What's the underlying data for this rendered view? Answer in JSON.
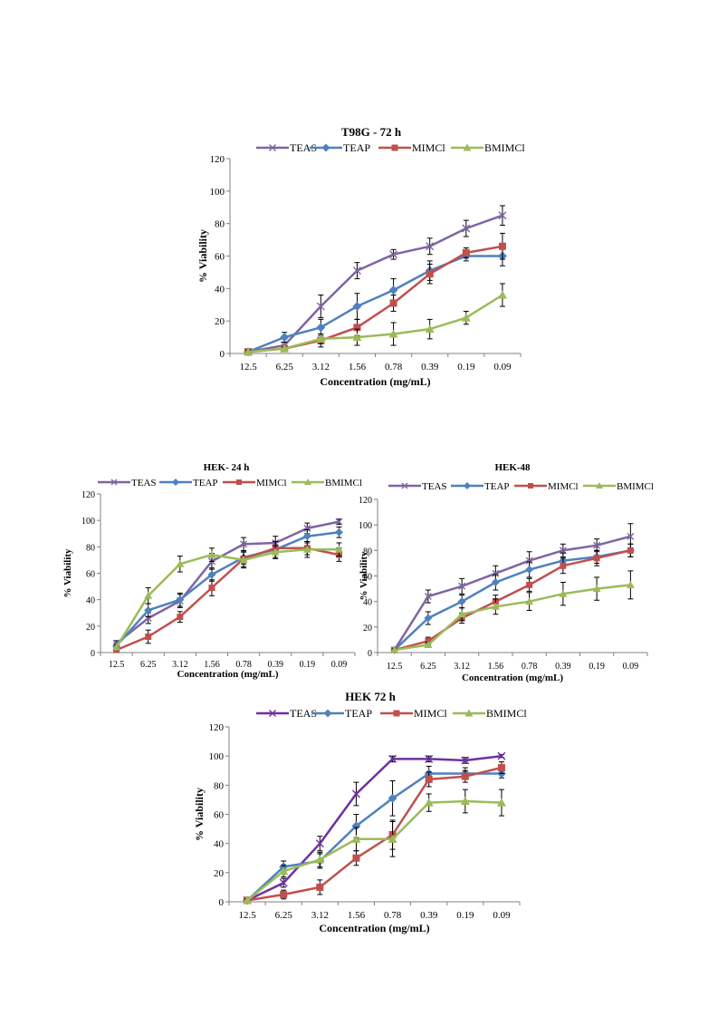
{
  "chart_data": [
    {
      "id": "t98g72",
      "type": "line",
      "title": "T98G - 72 h",
      "xlabel": "Concentration (mg/mL)",
      "ylabel": "% Viability",
      "categories": [
        "12.5",
        "6.25",
        "3.12",
        "1.56",
        "0.78",
        "0.39",
        "0.19",
        "0.09"
      ],
      "ylim": [
        0,
        120
      ],
      "yticks": [
        0,
        20,
        40,
        60,
        80,
        100,
        120
      ],
      "grid": false,
      "legend_position": "top",
      "series": [
        {
          "name": "TEAS",
          "color": "#8064A2",
          "marker": "x",
          "values": [
            1,
            5,
            29,
            51,
            61,
            66,
            77,
            85
          ],
          "errors": [
            1,
            2,
            7,
            5,
            3,
            5,
            5,
            6
          ]
        },
        {
          "name": "TEAP",
          "color": "#4F81BD",
          "marker": "diamond",
          "values": [
            1,
            10,
            16,
            29,
            39,
            51,
            60,
            60
          ],
          "errors": [
            1,
            3,
            5,
            8,
            7,
            6,
            3,
            6
          ]
        },
        {
          "name": "MIMCl",
          "color": "#C0504D",
          "marker": "square",
          "values": [
            1,
            3,
            8,
            16,
            31,
            49,
            62,
            66
          ],
          "errors": [
            1,
            1,
            4,
            5,
            5,
            6,
            3,
            8
          ]
        },
        {
          "name": "BMIMCl",
          "color": "#9BBB59",
          "marker": "triangle",
          "values": [
            1,
            3,
            9,
            10,
            12,
            15,
            22,
            36
          ],
          "errors": [
            1,
            1,
            3,
            5,
            7,
            6,
            4,
            7
          ]
        }
      ]
    },
    {
      "id": "hek24",
      "type": "line",
      "title": "HEK- 24 h",
      "xlabel": "Concentration (mg/mL)",
      "ylabel": "% Viability",
      "categories": [
        "12.5",
        "6.25",
        "3.12",
        "1.56",
        "0.78",
        "0.39",
        "0.19",
        "0.09"
      ],
      "ylim": [
        0,
        120
      ],
      "yticks": [
        0,
        20,
        40,
        60,
        80,
        100,
        120
      ],
      "grid": false,
      "legend_position": "top",
      "series": [
        {
          "name": "TEAS",
          "color": "#8064A2",
          "marker": "x",
          "values": [
            7,
            26,
            39,
            69,
            82,
            83,
            94,
            99
          ],
          "errors": [
            2,
            4,
            5,
            6,
            5,
            5,
            4,
            2
          ]
        },
        {
          "name": "TEAP",
          "color": "#4F81BD",
          "marker": "diamond",
          "values": [
            5,
            32,
            40,
            59,
            72,
            78,
            88,
            91
          ],
          "errors": [
            2,
            5,
            5,
            5,
            5,
            6,
            5,
            4
          ]
        },
        {
          "name": "MIMCl",
          "color": "#C0504D",
          "marker": "square",
          "values": [
            2,
            12,
            27,
            49,
            71,
            79,
            79,
            74
          ],
          "errors": [
            1,
            5,
            4,
            6,
            6,
            5,
            5,
            5
          ]
        },
        {
          "name": "BMIMCl",
          "color": "#9BBB59",
          "marker": "triangle",
          "values": [
            4,
            43,
            67,
            74,
            70,
            76,
            78,
            78
          ],
          "errors": [
            2,
            6,
            6,
            5,
            6,
            5,
            6,
            5
          ]
        }
      ]
    },
    {
      "id": "hek48",
      "type": "line",
      "title": "HEK-48",
      "xlabel": "Concentration (mg/mL)",
      "ylabel": "% Viability",
      "categories": [
        "12.5",
        "6.25",
        "3.12",
        "1.56",
        "0.78",
        "0.39",
        "0.19",
        "0.09"
      ],
      "ylim": [
        0,
        120
      ],
      "yticks": [
        0,
        20,
        40,
        60,
        80,
        100,
        120
      ],
      "grid": false,
      "legend_position": "top",
      "series": [
        {
          "name": "TEAS",
          "color": "#8064A2",
          "marker": "x",
          "values": [
            2,
            44,
            52,
            62,
            72,
            80,
            84,
            91
          ],
          "errors": [
            1,
            5,
            6,
            6,
            7,
            5,
            5,
            10
          ]
        },
        {
          "name": "TEAP",
          "color": "#4F81BD",
          "marker": "diamond",
          "values": [
            2,
            27,
            40,
            55,
            65,
            72,
            75,
            80
          ],
          "errors": [
            1,
            5,
            5,
            6,
            6,
            6,
            5,
            5
          ]
        },
        {
          "name": "MIMCl",
          "color": "#C0504D",
          "marker": "square",
          "values": [
            2,
            9,
            27,
            40,
            53,
            68,
            74,
            80
          ],
          "errors": [
            1,
            3,
            4,
            5,
            5,
            6,
            6,
            5
          ]
        },
        {
          "name": "BMIMCl",
          "color": "#9BBB59",
          "marker": "triangle",
          "values": [
            2,
            6,
            30,
            36,
            40,
            46,
            50,
            53
          ],
          "errors": [
            1,
            2,
            5,
            6,
            7,
            9,
            9,
            11
          ]
        }
      ]
    },
    {
      "id": "hek72",
      "type": "line",
      "title": "HEK 72 h",
      "xlabel": "Concentration (mg/mL)",
      "ylabel": "% Viability",
      "categories": [
        "12.5",
        "6.25",
        "3.12",
        "1.56",
        "0.78",
        "0.39",
        "0.19",
        "0.09"
      ],
      "ylim": [
        0,
        120
      ],
      "yticks": [
        0,
        20,
        40,
        60,
        80,
        100,
        120
      ],
      "grid": false,
      "legend_position": "top",
      "series": [
        {
          "name": "TEAS",
          "color": "#7030A0",
          "marker": "x",
          "values": [
            1,
            13,
            40,
            74,
            98,
            98,
            97,
            100
          ],
          "errors": [
            1,
            3,
            5,
            8,
            2,
            2,
            2,
            1
          ]
        },
        {
          "name": "TEAP",
          "color": "#4F81BD",
          "marker": "diamond",
          "values": [
            1,
            24,
            28,
            52,
            71,
            88,
            88,
            88
          ],
          "errors": [
            1,
            4,
            5,
            8,
            12,
            5,
            4,
            3
          ]
        },
        {
          "name": "MIMCl",
          "color": "#C0504D",
          "marker": "square",
          "values": [
            1,
            5,
            10,
            30,
            46,
            84,
            86,
            92
          ],
          "errors": [
            1,
            3,
            5,
            5,
            10,
            5,
            4,
            4
          ]
        },
        {
          "name": "BMIMCl",
          "color": "#9BBB59",
          "marker": "triangle",
          "values": [
            1,
            21,
            29,
            43,
            43,
            68,
            69,
            68
          ],
          "errors": [
            1,
            4,
            5,
            8,
            12,
            6,
            8,
            9
          ]
        }
      ]
    }
  ]
}
